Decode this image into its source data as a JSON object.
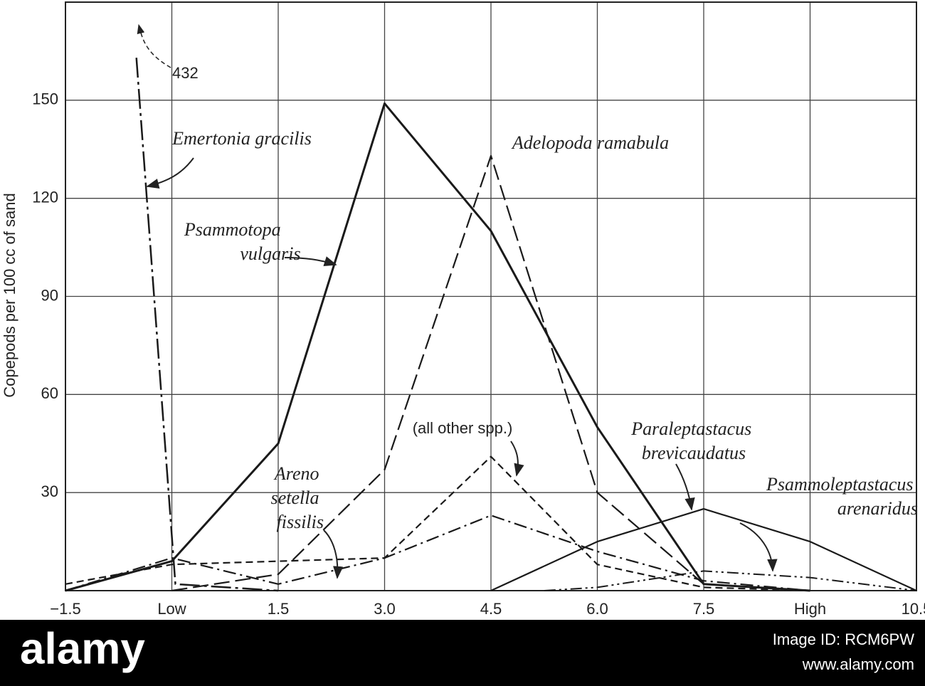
{
  "chart_data": {
    "type": "line",
    "y_label": "Copepods per 100 cc of sand",
    "xlim": [
      -1.5,
      10.5
    ],
    "ylim": [
      0,
      180
    ],
    "xticks": [
      {
        "value": -1.5,
        "label": "−1.5"
      },
      {
        "value": 0,
        "label": "Low"
      },
      1.5,
      {
        "value": 3,
        "label": "3.0"
      },
      4.5,
      {
        "value": 6,
        "label": "6.0"
      },
      7.5,
      {
        "value": 9,
        "label": "High"
      },
      10.5
    ],
    "yticks": [
      30,
      60,
      90,
      120,
      150
    ],
    "grid": true,
    "annotations": [
      "432"
    ],
    "series": [
      {
        "name": "Psammotopa vulgaris",
        "color": "#1a1a1a",
        "style": "solid",
        "x": [
          -1.5,
          0,
          1.5,
          3,
          4.5,
          6,
          7.5,
          9
        ],
        "values": [
          0,
          9,
          45,
          149,
          110,
          50,
          2,
          0
        ]
      },
      {
        "name": "Emertonia gracilis",
        "color": "#1a1a1a",
        "style": "longdash",
        "x": [
          -0.5,
          0.05,
          1.5
        ],
        "values": [
          163,
          2,
          0
        ]
      },
      {
        "name": "Adelopoda ramabula",
        "color": "#1a1a1a",
        "style": "dashed",
        "x": [
          0,
          1.5,
          3,
          4.5,
          6,
          7.5,
          9
        ],
        "values": [
          0,
          5,
          37,
          133,
          30,
          2,
          0
        ]
      },
      {
        "name": "(all other spp.)",
        "color": "#1a1a1a",
        "style": "shortdash",
        "x": [
          -1.5,
          0,
          3,
          4.5,
          6,
          7.5,
          9
        ],
        "values": [
          2,
          8,
          10,
          41,
          8,
          1,
          0
        ]
      },
      {
        "name": "Areno setella fissilis",
        "color": "#1a1a1a",
        "style": "dashdot",
        "x": [
          -1.5,
          0,
          1.5,
          3,
          4.5,
          6,
          7.5,
          9
        ],
        "values": [
          0,
          10,
          2,
          10,
          23,
          12,
          3,
          0
        ]
      },
      {
        "name": "Paraleptastacus brevicaudatus",
        "color": "#1a1a1a",
        "style": "thin",
        "x": [
          4.5,
          6,
          7.5,
          9,
          10.5
        ],
        "values": [
          0,
          15,
          25,
          15,
          0
        ]
      },
      {
        "name": "Psammoleptastacus arenaridus",
        "color": "#1a1a1a",
        "style": "dashdotdot",
        "x": [
          5.25,
          6,
          7.5,
          9,
          10.5
        ],
        "values": [
          0,
          1,
          6,
          4,
          0
        ]
      }
    ]
  },
  "watermark": {
    "logo": "alamy",
    "image_id": "Image ID: RCM6PW",
    "url": "www.alamy.com"
  }
}
